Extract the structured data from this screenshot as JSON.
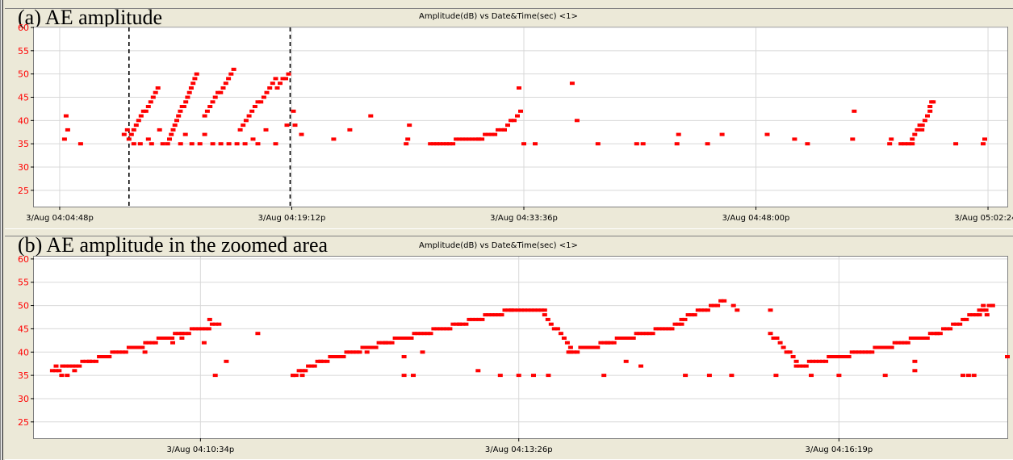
{
  "panels": [
    {
      "label": "(a)  AE amplitude",
      "title": "Amplitude(dB) vs Date&Time(sec) <1>"
    },
    {
      "label": "(b)  AE amplitude in the zoomed area",
      "title": "Amplitude(dB) vs Date&Time(sec) <1>"
    }
  ],
  "colors": {
    "points": "#ff0000",
    "ytick": "#ff0000",
    "grid": "#d8d8d8",
    "zoom_marker": "#000000"
  },
  "chart_data": [
    {
      "type": "scatter",
      "title": "Amplitude(dB) vs Date&Time(sec) <1>",
      "xlabel": "",
      "ylabel": "",
      "x_unit": "minutes after 3/Aug 04:04:48p",
      "xlim": [
        -1.6,
        58.8
      ],
      "ylim": [
        21.5,
        60
      ],
      "yticks": [
        25,
        30,
        35,
        40,
        45,
        50,
        55,
        60
      ],
      "xticks": [
        {
          "value": 0,
          "label": "3/Aug 04:04:48p"
        },
        {
          "value": 14.4,
          "label": "3/Aug 04:19:12p"
        },
        {
          "value": 28.8,
          "label": "3/Aug 04:33:36p"
        },
        {
          "value": 43.2,
          "label": "3/Aug 04:48:00p"
        },
        {
          "value": 57.6,
          "label": "3/Aug 05:02:24p"
        }
      ],
      "grid": true,
      "zoom_markers": [
        4.3,
        14.3
      ],
      "series": [
        {
          "segments": [
            {
              "x0": 4.3,
              "x1": 6.1,
              "y0": 36,
              "y1": 47
            },
            {
              "x0": 6.7,
              "x1": 8.5,
              "y0": 35,
              "y1": 50
            },
            {
              "x0": 9.0,
              "x1": 10.8,
              "y0": 41,
              "y1": 51
            },
            {
              "x0": 11.2,
              "x1": 13.4,
              "y0": 38,
              "y1": 49
            },
            {
              "x0": 13.5,
              "x1": 14.2,
              "y0": 47,
              "y1": 50
            },
            {
              "x0": 23.0,
              "x1": 26.0,
              "y0": 35,
              "y1": 36
            },
            {
              "x0": 26.0,
              "x1": 27.6,
              "y0": 36,
              "y1": 38
            },
            {
              "x0": 27.6,
              "x1": 28.6,
              "y0": 38,
              "y1": 42
            },
            {
              "x0": 52.2,
              "x1": 52.9,
              "y0": 35,
              "y1": 35
            },
            {
              "x0": 52.9,
              "x1": 54.0,
              "y0": 36,
              "y1": 42
            },
            {
              "x0": 54.0,
              "x1": 54.2,
              "y0": 43,
              "y1": 44
            }
          ],
          "points": [
            [
              0.4,
              41
            ],
            [
              0.5,
              38
            ],
            [
              0.3,
              36
            ],
            [
              1.3,
              35
            ],
            [
              4.0,
              37
            ],
            [
              4.2,
              38
            ],
            [
              4.6,
              35
            ],
            [
              5.0,
              35
            ],
            [
              5.5,
              36
            ],
            [
              5.7,
              35
            ],
            [
              6.2,
              38
            ],
            [
              6.4,
              35
            ],
            [
              7.5,
              35
            ],
            [
              7.8,
              37
            ],
            [
              8.2,
              35
            ],
            [
              8.7,
              35
            ],
            [
              9.0,
              37
            ],
            [
              9.5,
              35
            ],
            [
              10.0,
              35
            ],
            [
              10.5,
              35
            ],
            [
              11.0,
              35
            ],
            [
              11.5,
              35
            ],
            [
              12.0,
              36
            ],
            [
              12.3,
              35
            ],
            [
              12.8,
              38
            ],
            [
              13.4,
              35
            ],
            [
              14.1,
              39
            ],
            [
              14.5,
              42
            ],
            [
              14.6,
              39
            ],
            [
              15.0,
              37
            ],
            [
              17.0,
              36
            ],
            [
              18.0,
              38
            ],
            [
              19.3,
              41
            ],
            [
              21.5,
              35
            ],
            [
              21.6,
              36
            ],
            [
              21.7,
              39
            ],
            [
              28.5,
              47
            ],
            [
              28.8,
              35
            ],
            [
              29.5,
              35
            ],
            [
              31.8,
              48
            ],
            [
              32.1,
              40
            ],
            [
              33.4,
              35
            ],
            [
              35.8,
              35
            ],
            [
              36.2,
              35
            ],
            [
              38.3,
              35
            ],
            [
              38.4,
              37
            ],
            [
              40.2,
              35
            ],
            [
              41.1,
              37
            ],
            [
              43.9,
              37
            ],
            [
              45.6,
              36
            ],
            [
              46.4,
              35
            ],
            [
              49.2,
              36
            ],
            [
              49.3,
              42
            ],
            [
              51.5,
              35
            ],
            [
              51.6,
              36
            ],
            [
              53.5,
              38
            ],
            [
              55.6,
              35
            ],
            [
              57.3,
              35
            ],
            [
              57.4,
              36
            ]
          ]
        }
      ]
    },
    {
      "type": "scatter",
      "title": "Amplitude(dB) vs Date&Time(sec) <1>",
      "xlabel": "",
      "ylabel": "",
      "x_unit": "seconds after 3/Aug 04:10:34p",
      "xlim": [
        -90,
        436
      ],
      "ylim": [
        21.5,
        60.5
      ],
      "yticks": [
        25,
        30,
        35,
        40,
        45,
        50,
        55,
        60
      ],
      "xticks": [
        {
          "value": 0,
          "label": "3/Aug 04:10:34p"
        },
        {
          "value": 172,
          "label": "3/Aug 04:13:26p"
        },
        {
          "value": 345,
          "label": "3/Aug 04:16:19p"
        }
      ],
      "grid": true,
      "series": [
        {
          "segments": [
            {
              "x0": -80,
              "x1": -60,
              "y0": 36,
              "y1": 38
            },
            {
              "x0": -60,
              "x1": -35,
              "y0": 38,
              "y1": 41
            },
            {
              "x0": -35,
              "x1": -10,
              "y0": 41,
              "y1": 44
            },
            {
              "x0": -10,
              "x1": 10,
              "y0": 44,
              "y1": 46
            },
            {
              "x0": 50,
              "x1": 65,
              "y0": 35,
              "y1": 38
            },
            {
              "x0": 65,
              "x1": 100,
              "y0": 38,
              "y1": 42
            },
            {
              "x0": 100,
              "x1": 140,
              "y0": 42,
              "y1": 46
            },
            {
              "x0": 140,
              "x1": 168,
              "y0": 46,
              "y1": 49
            },
            {
              "x0": 168,
              "x1": 186,
              "y0": 49,
              "y1": 49
            },
            {
              "x0": 186,
              "x1": 200,
              "y0": 48,
              "y1": 41
            },
            {
              "x0": 200,
              "x1": 220,
              "y0": 40,
              "y1": 42
            },
            {
              "x0": 220,
              "x1": 260,
              "y0": 42,
              "y1": 46
            },
            {
              "x0": 260,
              "x1": 283,
              "y0": 47,
              "y1": 51
            },
            {
              "x0": 308,
              "x1": 322,
              "y0": 44,
              "y1": 38
            },
            {
              "x0": 322,
              "x1": 345,
              "y0": 37,
              "y1": 39
            },
            {
              "x0": 345,
              "x1": 370,
              "y0": 39,
              "y1": 41
            },
            {
              "x0": 370,
              "x1": 398,
              "y0": 41,
              "y1": 44
            },
            {
              "x0": 398,
              "x1": 428,
              "y0": 44,
              "y1": 50
            }
          ],
          "points": [
            [
              -78,
              37
            ],
            [
              -75,
              35
            ],
            [
              -72,
              35
            ],
            [
              -68,
              36
            ],
            [
              -30,
              40
            ],
            [
              -15,
              42
            ],
            [
              -10,
              43
            ],
            [
              2,
              42
            ],
            [
              5,
              47
            ],
            [
              8,
              35
            ],
            [
              14,
              38
            ],
            [
              31,
              44
            ],
            [
              50,
              35
            ],
            [
              55,
              35
            ],
            [
              90,
              40
            ],
            [
              110,
              39
            ],
            [
              110,
              35
            ],
            [
              115,
              35
            ],
            [
              120,
              40
            ],
            [
              150,
              36
            ],
            [
              162,
              35
            ],
            [
              172,
              35
            ],
            [
              180,
              35
            ],
            [
              188,
              35
            ],
            [
              199,
              40
            ],
            [
              218,
              35
            ],
            [
              230,
              38
            ],
            [
              238,
              37
            ],
            [
              262,
              35
            ],
            [
              275,
              35
            ],
            [
              287,
              35
            ],
            [
              288,
              50
            ],
            [
              290,
              49
            ],
            [
              308,
              49
            ],
            [
              311,
              35
            ],
            [
              330,
              35
            ],
            [
              345,
              35
            ],
            [
              370,
              35
            ],
            [
              386,
              36
            ],
            [
              386,
              38
            ],
            [
              412,
              35
            ],
            [
              415,
              35
            ],
            [
              418,
              35
            ],
            [
              421,
              48
            ],
            [
              423,
              50
            ],
            [
              425,
              48
            ],
            [
              428,
              50
            ],
            [
              436,
              39
            ]
          ]
        }
      ]
    }
  ]
}
